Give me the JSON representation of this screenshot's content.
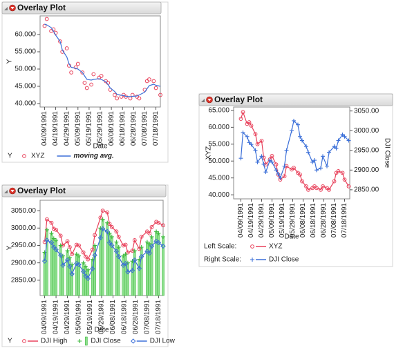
{
  "chart_data": [
    {
      "type": "line",
      "title": "Overlay Plot",
      "x_label": "Date",
      "y_label": "Y",
      "legend_label": "Y",
      "x": [
        "04/09/1991",
        "04/11/1991",
        "04/15/1991",
        "04/17/1991",
        "04/19/1991",
        "04/23/1991",
        "04/25/1991",
        "04/29/1991",
        "05/01/1991",
        "05/03/1991",
        "05/07/1991",
        "05/09/1991",
        "05/13/1991",
        "05/15/1991",
        "05/17/1991",
        "05/21/1991",
        "05/23/1991",
        "05/28/1991",
        "05/30/1991",
        "06/03/1991",
        "06/05/1991",
        "06/07/1991",
        "06/11/1991",
        "06/13/1991",
        "06/17/1991",
        "06/19/1991",
        "06/21/1991",
        "06/25/1991",
        "06/27/1991",
        "07/01/1991",
        "07/03/1991",
        "07/08/1991",
        "07/10/1991",
        "07/12/1991",
        "07/16/1991",
        "07/18/1991",
        "07/22/1991"
      ],
      "xlim": [
        "04/05/1991",
        "07/22/1991"
      ],
      "xticks": [
        "04/09/1991",
        "04/19/1991",
        "04/29/1991",
        "05/09/1991",
        "05/19/1991",
        "05/29/1991",
        "06/08/1991",
        "06/18/1991",
        "06/28/1991",
        "07/08/1991",
        "07/18/1991"
      ],
      "ylim": [
        39,
        65.4
      ],
      "yticks": [
        {
          "value": 40,
          "label": "40.000"
        },
        {
          "value": 45,
          "label": "45.000"
        },
        {
          "value": 50,
          "label": "50.000"
        },
        {
          "value": 55,
          "label": "55.000"
        },
        {
          "value": 60,
          "label": "60.000"
        }
      ],
      "series": [
        {
          "name": "XYZ",
          "color": "#e8405a",
          "marker": "circle",
          "line": false,
          "values": [
            62.5,
            64.5,
            61,
            61.5,
            60.5,
            58,
            55,
            56,
            51,
            49,
            50.5,
            51.5,
            49,
            46,
            44.5,
            45.5,
            48.5,
            47.5,
            48,
            46.5,
            46,
            44,
            42.5,
            41.5,
            42,
            42.5,
            42,
            41.5,
            42.5,
            42,
            41.5,
            44,
            46.5,
            47,
            46.5,
            44.5,
            42.5
          ]
        },
        {
          "name": "moving avg.",
          "color": "#3b6fd8",
          "marker": "none",
          "line": true,
          "values": [
            63,
            62.8,
            62,
            61,
            59.8,
            58,
            55.5,
            53.5,
            51.5,
            50.5,
            50.2,
            50,
            49,
            48,
            47,
            46.8,
            47,
            47.2,
            47,
            46.3,
            45.5,
            44.5,
            43.5,
            42.7,
            42.4,
            42.3,
            42.1,
            42,
            42.1,
            42.2,
            42.5,
            43.3,
            44.3,
            45.2,
            45.6,
            45.3,
            45
          ]
        }
      ]
    },
    {
      "type": "line",
      "title": "Overlay Plot",
      "x_label": "Date",
      "y_label": "XYZ",
      "y2_label": "DJI Close",
      "legend_labels": {
        "y": "Left Scale:",
        "y2": "Right Scale:"
      },
      "x": [
        "04/09/1991",
        "04/11/1991",
        "04/15/1991",
        "04/17/1991",
        "04/19/1991",
        "04/23/1991",
        "04/25/1991",
        "04/29/1991",
        "05/01/1991",
        "05/03/1991",
        "05/07/1991",
        "05/09/1991",
        "05/13/1991",
        "05/15/1991",
        "05/17/1991",
        "05/21/1991",
        "05/23/1991",
        "05/28/1991",
        "05/30/1991",
        "06/03/1991",
        "06/05/1991",
        "06/07/1991",
        "06/11/1991",
        "06/13/1991",
        "06/17/1991",
        "06/19/1991",
        "06/21/1991",
        "06/25/1991",
        "06/27/1991",
        "07/01/1991",
        "07/03/1991",
        "07/08/1991",
        "07/10/1991",
        "07/12/1991",
        "07/16/1991",
        "07/18/1991",
        "07/22/1991"
      ],
      "xlim": [
        "04/02/1991",
        "07/23/1991"
      ],
      "xticks": [
        "04/09/1991",
        "04/19/1991",
        "04/29/1991",
        "05/09/1991",
        "05/19/1991",
        "05/29/1991",
        "06/08/1991",
        "06/18/1991",
        "06/28/1991",
        "07/08/1991",
        "07/18/1991"
      ],
      "ylim": [
        38.8,
        66
      ],
      "yticks": [
        {
          "value": 40,
          "label": "40.000"
        },
        {
          "value": 45,
          "label": "45.000"
        },
        {
          "value": 50,
          "label": "50.000"
        },
        {
          "value": 55,
          "label": "55.000"
        },
        {
          "value": 60,
          "label": "60.000"
        },
        {
          "value": 65,
          "label": "65.000"
        }
      ],
      "y2lim": [
        2827,
        3060
      ],
      "y2ticks": [
        {
          "value": 2850,
          "label": "2850.00"
        },
        {
          "value": 2900,
          "label": "2900.00"
        },
        {
          "value": 2950,
          "label": "2950.00"
        },
        {
          "value": 3000,
          "label": "3000.00"
        },
        {
          "value": 3050,
          "label": "3050.00"
        }
      ],
      "series": [
        {
          "name": "XYZ",
          "color": "#e8405a",
          "marker": "circle",
          "line": true,
          "values": [
            62.5,
            64.5,
            61,
            61.5,
            60.5,
            58,
            55,
            56,
            51,
            49,
            50.5,
            51.5,
            49,
            46,
            44.5,
            45.5,
            48.5,
            47.5,
            48,
            46.5,
            46,
            44,
            42.5,
            41.5,
            42,
            42.5,
            42,
            41.5,
            42.5,
            42,
            41.5,
            44,
            46.5,
            47,
            46.5,
            44.5,
            42.5
          ]
        },
        {
          "name": "DJI Close",
          "color": "#3b6fd8",
          "marker": "plus",
          "line": true,
          "axis": "y2",
          "values": [
            2930,
            2995,
            2985,
            2970,
            2965,
            2950,
            2920,
            2935,
            2915,
            2895,
            2925,
            2920,
            2900,
            2890,
            2880,
            2910,
            2950,
            3000,
            3025,
            3015,
            2985,
            2975,
            2960,
            2945,
            2920,
            2925,
            2900,
            2905,
            2935,
            2910,
            2945,
            2960,
            2955,
            2975,
            2990,
            2985,
            2975
          ]
        }
      ]
    },
    {
      "type": "line",
      "title": "Overlay Plot",
      "x_label": "Date",
      "y_label": "Y",
      "legend_label": "Y",
      "x": [
        "04/09/1991",
        "04/11/1991",
        "04/15/1991",
        "04/17/1991",
        "04/19/1991",
        "04/23/1991",
        "04/25/1991",
        "04/29/1991",
        "05/01/1991",
        "05/03/1991",
        "05/07/1991",
        "05/09/1991",
        "05/13/1991",
        "05/15/1991",
        "05/17/1991",
        "05/21/1991",
        "05/23/1991",
        "05/28/1991",
        "05/30/1991",
        "06/03/1991",
        "06/05/1991",
        "06/07/1991",
        "06/11/1991",
        "06/13/1991",
        "06/17/1991",
        "06/19/1991",
        "06/21/1991",
        "06/25/1991",
        "06/27/1991",
        "07/01/1991",
        "07/03/1991",
        "07/08/1991",
        "07/10/1991",
        "07/12/1991",
        "07/16/1991",
        "07/18/1991",
        "07/22/1991"
      ],
      "xlim": [
        "04/05/1991",
        "07/22/1991"
      ],
      "xticks": [
        "04/09/1991",
        "04/19/1991",
        "04/29/1991",
        "05/09/1991",
        "05/19/1991",
        "05/29/1991",
        "06/08/1991",
        "06/18/1991",
        "06/28/1991",
        "07/08/1991",
        "07/18/1991"
      ],
      "ylim": [
        2806,
        3080
      ],
      "yticks": [
        {
          "value": 2850,
          "label": "2850.00"
        },
        {
          "value": 2900,
          "label": "2900.00"
        },
        {
          "value": 2950,
          "label": "2950.00"
        },
        {
          "value": 3000,
          "label": "3000.00"
        },
        {
          "value": 3050,
          "label": "3050.00"
        }
      ],
      "series": [
        {
          "name": "DJI High",
          "color": "#e8405a",
          "marker": "circle",
          "line": true,
          "values": [
            2960,
            3025,
            3015,
            2998,
            2995,
            2978,
            2950,
            2962,
            2945,
            2925,
            2952,
            2950,
            2930,
            2918,
            2910,
            2938,
            2980,
            3030,
            3050,
            3045,
            3012,
            3003,
            2990,
            2975,
            2950,
            2952,
            2930,
            2935,
            2965,
            2940,
            2975,
            2990,
            2985,
            3003,
            3018,
            3015,
            3008
          ]
        },
        {
          "name": "DJI Close",
          "color": "#3cb83c",
          "marker": "plus",
          "bar": true,
          "values": [
            2930,
            2995,
            2985,
            2970,
            2965,
            2950,
            2920,
            2935,
            2915,
            2895,
            2925,
            2920,
            2900,
            2890,
            2880,
            2910,
            2950,
            3000,
            3025,
            3015,
            2985,
            2975,
            2960,
            2945,
            2920,
            2925,
            2900,
            2905,
            2935,
            2910,
            2945,
            2960,
            2955,
            2975,
            2990,
            2985,
            2975
          ]
        },
        {
          "name": "DJI Low",
          "color": "#3b6fd8",
          "marker": "diamond",
          "line": true,
          "values": [
            2905,
            2965,
            2958,
            2945,
            2938,
            2922,
            2893,
            2908,
            2890,
            2868,
            2898,
            2895,
            2875,
            2862,
            2855,
            2883,
            2922,
            2972,
            2998,
            2990,
            2958,
            2950,
            2933,
            2918,
            2893,
            2898,
            2874,
            2878,
            2908,
            2884,
            2918,
            2933,
            2928,
            2948,
            2962,
            2958,
            2948
          ]
        }
      ]
    }
  ]
}
